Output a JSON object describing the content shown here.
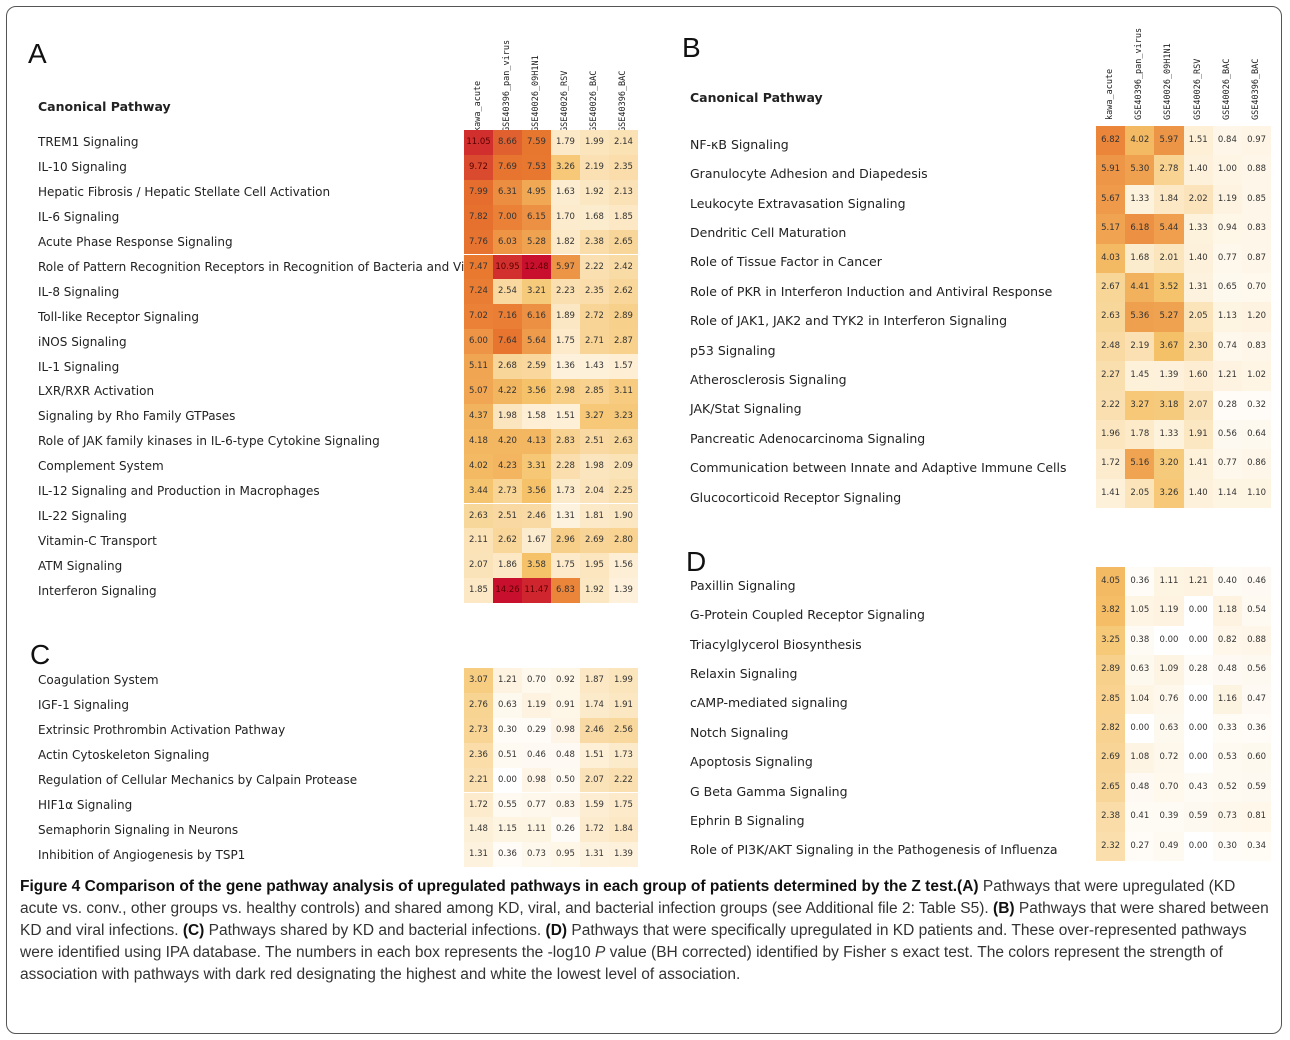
{
  "panels": {
    "A": {
      "letter": "A",
      "header": "Canonical Pathway",
      "columns": [
        "kawa_acute",
        "GSE40396_pan_virus",
        "GSE40026_09H1N1",
        "GSE40026_RSV",
        "GSE40026_BAC",
        "GSE40396_BAC"
      ],
      "rows": [
        {
          "label": "TREM1 Signaling",
          "values": [
            "11.05",
            "8.66",
            "7.59",
            "1.79",
            "1.99",
            "2.14"
          ]
        },
        {
          "label": "IL-10 Signaling",
          "values": [
            "9.72",
            "7.69",
            "7.53",
            "3.26",
            "2.19",
            "2.35"
          ]
        },
        {
          "label": "Hepatic Fibrosis / Hepatic Stellate Cell Activation",
          "values": [
            "7.99",
            "6.31",
            "4.95",
            "1.63",
            "1.92",
            "2.13"
          ]
        },
        {
          "label": "IL-6 Signaling",
          "values": [
            "7.82",
            "7.00",
            "6.15",
            "1.70",
            "1.68",
            "1.85"
          ]
        },
        {
          "label": "Acute Phase Response Signaling",
          "values": [
            "7.76",
            "6.03",
            "5.28",
            "1.82",
            "2.38",
            "2.65"
          ]
        },
        {
          "label": "Role of Pattern Recognition Receptors in Recognition of Bacteria and Viruses",
          "values": [
            "7.47",
            "10.95",
            "12.48",
            "5.97",
            "2.22",
            "2.42"
          ]
        },
        {
          "label": "IL-8 Signaling",
          "values": [
            "7.24",
            "2.54",
            "3.21",
            "2.23",
            "2.35",
            "2.62"
          ]
        },
        {
          "label": "Toll-like Receptor Signaling",
          "values": [
            "7.02",
            "7.16",
            "6.16",
            "1.89",
            "2.72",
            "2.89"
          ]
        },
        {
          "label": "iNOS Signaling",
          "values": [
            "6.00",
            "7.64",
            "5.64",
            "1.75",
            "2.71",
            "2.87"
          ]
        },
        {
          "label": "IL-1 Signaling",
          "values": [
            "5.11",
            "2.68",
            "2.59",
            "1.36",
            "1.43",
            "1.57"
          ]
        },
        {
          "label": "LXR/RXR Activation",
          "values": [
            "5.07",
            "4.22",
            "3.56",
            "2.98",
            "2.85",
            "3.11"
          ]
        },
        {
          "label": "Signaling by Rho Family GTPases",
          "values": [
            "4.37",
            "1.98",
            "1.58",
            "1.51",
            "3.27",
            "3.23"
          ]
        },
        {
          "label": "Role of JAK family kinases in IL-6-type Cytokine Signaling",
          "values": [
            "4.18",
            "4.20",
            "4.13",
            "2.83",
            "2.51",
            "2.63"
          ]
        },
        {
          "label": "Complement System",
          "values": [
            "4.02",
            "4.23",
            "3.31",
            "2.28",
            "1.98",
            "2.09"
          ]
        },
        {
          "label": "IL-12 Signaling and Production in Macrophages",
          "values": [
            "3.44",
            "2.73",
            "3.56",
            "1.73",
            "2.04",
            "2.25"
          ]
        },
        {
          "label": "IL-22 Signaling",
          "values": [
            "2.63",
            "2.51",
            "2.46",
            "1.31",
            "1.81",
            "1.90"
          ]
        },
        {
          "label": "Vitamin-C Transport",
          "values": [
            "2.11",
            "2.62",
            "1.67",
            "2.96",
            "2.69",
            "2.80"
          ]
        },
        {
          "label": "ATM Signaling",
          "values": [
            "2.07",
            "1.86",
            "3.58",
            "1.75",
            "1.95",
            "1.56"
          ]
        },
        {
          "label": "Interferon Signaling",
          "values": [
            "1.85",
            "14.26",
            "11.47",
            "6.83",
            "1.92",
            "1.39"
          ]
        }
      ]
    },
    "B": {
      "letter": "B",
      "header": "Canonical Pathway",
      "columns": [
        "kawa_acute",
        "GSE40396_pan_virus",
        "GSE40026_09H1N1",
        "GSE40026_RSV",
        "GSE40026_BAC",
        "GSE40396_BAC"
      ],
      "rows": [
        {
          "label": "NF-κB Signaling",
          "values": [
            "6.82",
            "4.02",
            "5.97",
            "1.51",
            "0.84",
            "0.97"
          ]
        },
        {
          "label": "Granulocyte Adhesion and Diapedesis",
          "values": [
            "5.91",
            "5.30",
            "2.78",
            "1.40",
            "1.00",
            "0.88"
          ]
        },
        {
          "label": "Leukocyte Extravasation Signaling",
          "values": [
            "5.67",
            "1.33",
            "1.84",
            "2.02",
            "1.19",
            "0.85"
          ]
        },
        {
          "label": "Dendritic Cell Maturation",
          "values": [
            "5.17",
            "6.18",
            "5.44",
            "1.33",
            "0.94",
            "0.83"
          ]
        },
        {
          "label": "Role of Tissue Factor in Cancer",
          "values": [
            "4.03",
            "1.68",
            "2.01",
            "1.40",
            "0.77",
            "0.87"
          ]
        },
        {
          "label": "Role of PKR in Interferon Induction and Antiviral Response",
          "values": [
            "2.67",
            "4.41",
            "3.52",
            "1.31",
            "0.65",
            "0.70"
          ]
        },
        {
          "label": "Role of JAK1, JAK2 and TYK2 in Interferon Signaling",
          "values": [
            "2.63",
            "5.36",
            "5.27",
            "2.05",
            "1.13",
            "1.20"
          ]
        },
        {
          "label": "p53 Signaling",
          "values": [
            "2.48",
            "2.19",
            "3.67",
            "2.30",
            "0.74",
            "0.83"
          ]
        },
        {
          "label": "Atherosclerosis Signaling",
          "values": [
            "2.27",
            "1.45",
            "1.39",
            "1.60",
            "1.21",
            "1.02"
          ]
        },
        {
          "label": "JAK/Stat Signaling",
          "values": [
            "2.22",
            "3.27",
            "3.18",
            "2.07",
            "0.28",
            "0.32"
          ]
        },
        {
          "label": "Pancreatic Adenocarcinoma Signaling",
          "values": [
            "1.96",
            "1.78",
            "1.33",
            "1.91",
            "0.56",
            "0.64"
          ]
        },
        {
          "label": "Communication between Innate and Adaptive Immune Cells",
          "values": [
            "1.72",
            "5.16",
            "3.20",
            "1.41",
            "0.77",
            "0.86"
          ]
        },
        {
          "label": "Glucocorticoid Receptor Signaling",
          "values": [
            "1.41",
            "2.05",
            "3.26",
            "1.40",
            "1.14",
            "1.10"
          ]
        }
      ]
    },
    "C": {
      "letter": "C",
      "rows": [
        {
          "label": "Coagulation System",
          "values": [
            "3.07",
            "1.21",
            "0.70",
            "0.92",
            "1.87",
            "1.99"
          ]
        },
        {
          "label": "IGF-1 Signaling",
          "values": [
            "2.76",
            "0.63",
            "1.19",
            "0.91",
            "1.74",
            "1.91"
          ]
        },
        {
          "label": "Extrinsic Prothrombin Activation Pathway",
          "values": [
            "2.73",
            "0.30",
            "0.29",
            "0.98",
            "2.46",
            "2.56"
          ]
        },
        {
          "label": "Actin Cytoskeleton Signaling",
          "values": [
            "2.36",
            "0.51",
            "0.46",
            "0.48",
            "1.51",
            "1.73"
          ]
        },
        {
          "label": "Regulation of Cellular Mechanics by Calpain Protease",
          "values": [
            "2.21",
            "0.00",
            "0.98",
            "0.50",
            "2.07",
            "2.22"
          ]
        },
        {
          "label": "HIF1α Signaling",
          "values": [
            "1.72",
            "0.55",
            "0.77",
            "0.83",
            "1.59",
            "1.75"
          ]
        },
        {
          "label": "Semaphorin Signaling in Neurons",
          "values": [
            "1.48",
            "1.15",
            "1.11",
            "0.26",
            "1.72",
            "1.84"
          ]
        },
        {
          "label": "Inhibition of Angiogenesis by TSP1",
          "values": [
            "1.31",
            "0.36",
            "0.73",
            "0.95",
            "1.31",
            "1.39"
          ]
        }
      ]
    },
    "D": {
      "letter": "D",
      "rows": [
        {
          "label": "Paxillin Signaling",
          "values": [
            "4.05",
            "0.36",
            "1.11",
            "1.21",
            "0.40",
            "0.46"
          ]
        },
        {
          "label": "G-Protein Coupled Receptor Signaling",
          "values": [
            "3.82",
            "1.05",
            "1.19",
            "0.00",
            "1.18",
            "0.54"
          ]
        },
        {
          "label": "Triacylglycerol Biosynthesis",
          "values": [
            "3.25",
            "0.38",
            "0.00",
            "0.00",
            "0.82",
            "0.88"
          ]
        },
        {
          "label": "Relaxin Signaling",
          "values": [
            "2.89",
            "0.63",
            "1.09",
            "0.28",
            "0.48",
            "0.56"
          ]
        },
        {
          "label": "cAMP-mediated signaling",
          "values": [
            "2.85",
            "1.04",
            "0.76",
            "0.00",
            "1.16",
            "0.47"
          ]
        },
        {
          "label": "Notch Signaling",
          "values": [
            "2.82",
            "0.00",
            "0.63",
            "0.00",
            "0.33",
            "0.36"
          ]
        },
        {
          "label": "Apoptosis Signaling",
          "values": [
            "2.69",
            "1.08",
            "0.72",
            "0.00",
            "0.53",
            "0.60"
          ]
        },
        {
          "label": "G Beta Gamma Signaling",
          "values": [
            "2.65",
            "0.48",
            "0.70",
            "0.43",
            "0.52",
            "0.59"
          ]
        },
        {
          "label": "Ephrin B Signaling",
          "values": [
            "2.38",
            "0.41",
            "0.39",
            "0.59",
            "0.73",
            "0.81"
          ]
        },
        {
          "label": "Role of PI3K/AKT Signaling in the Pathogenesis of Influenza",
          "values": [
            "2.32",
            "0.27",
            "0.49",
            "0.00",
            "0.30",
            "0.34"
          ]
        }
      ]
    }
  },
  "color_scale": {
    "low": "#ffffff",
    "mid": "#f5c36b",
    "high_a": "#e8782f",
    "max": "#c8102e"
  },
  "caption": {
    "title": "Figure 4 Comparison of the gene pathway analysis of upregulated pathways in each group of patients determined by the Z test.",
    "a_label": "(A)",
    "a_text": " Pathways that were upregulated (KD acute vs. conv., other groups vs. healthy controls) and shared among KD, viral, and bacterial infection groups (see Additional file 2: Table S5). ",
    "b_label": "(B)",
    "b_text": " Pathways that were shared between KD and viral infections. ",
    "c_label": "(C)",
    "c_text": " Pathways shared by KD and bacterial infections. ",
    "d_label": "(D)",
    "d_text": " Pathways that were specifically upregulated in KD patients and. These over-represented pathways were identified using IPA database. The numbers in each box represents the -log10 ",
    "p_italic": "P",
    "tail_text": " value (BH corrected) identified by Fisher s exact test. The colors represent the strength of association with pathways with dark red designating the highest and white the lowest level of association."
  }
}
